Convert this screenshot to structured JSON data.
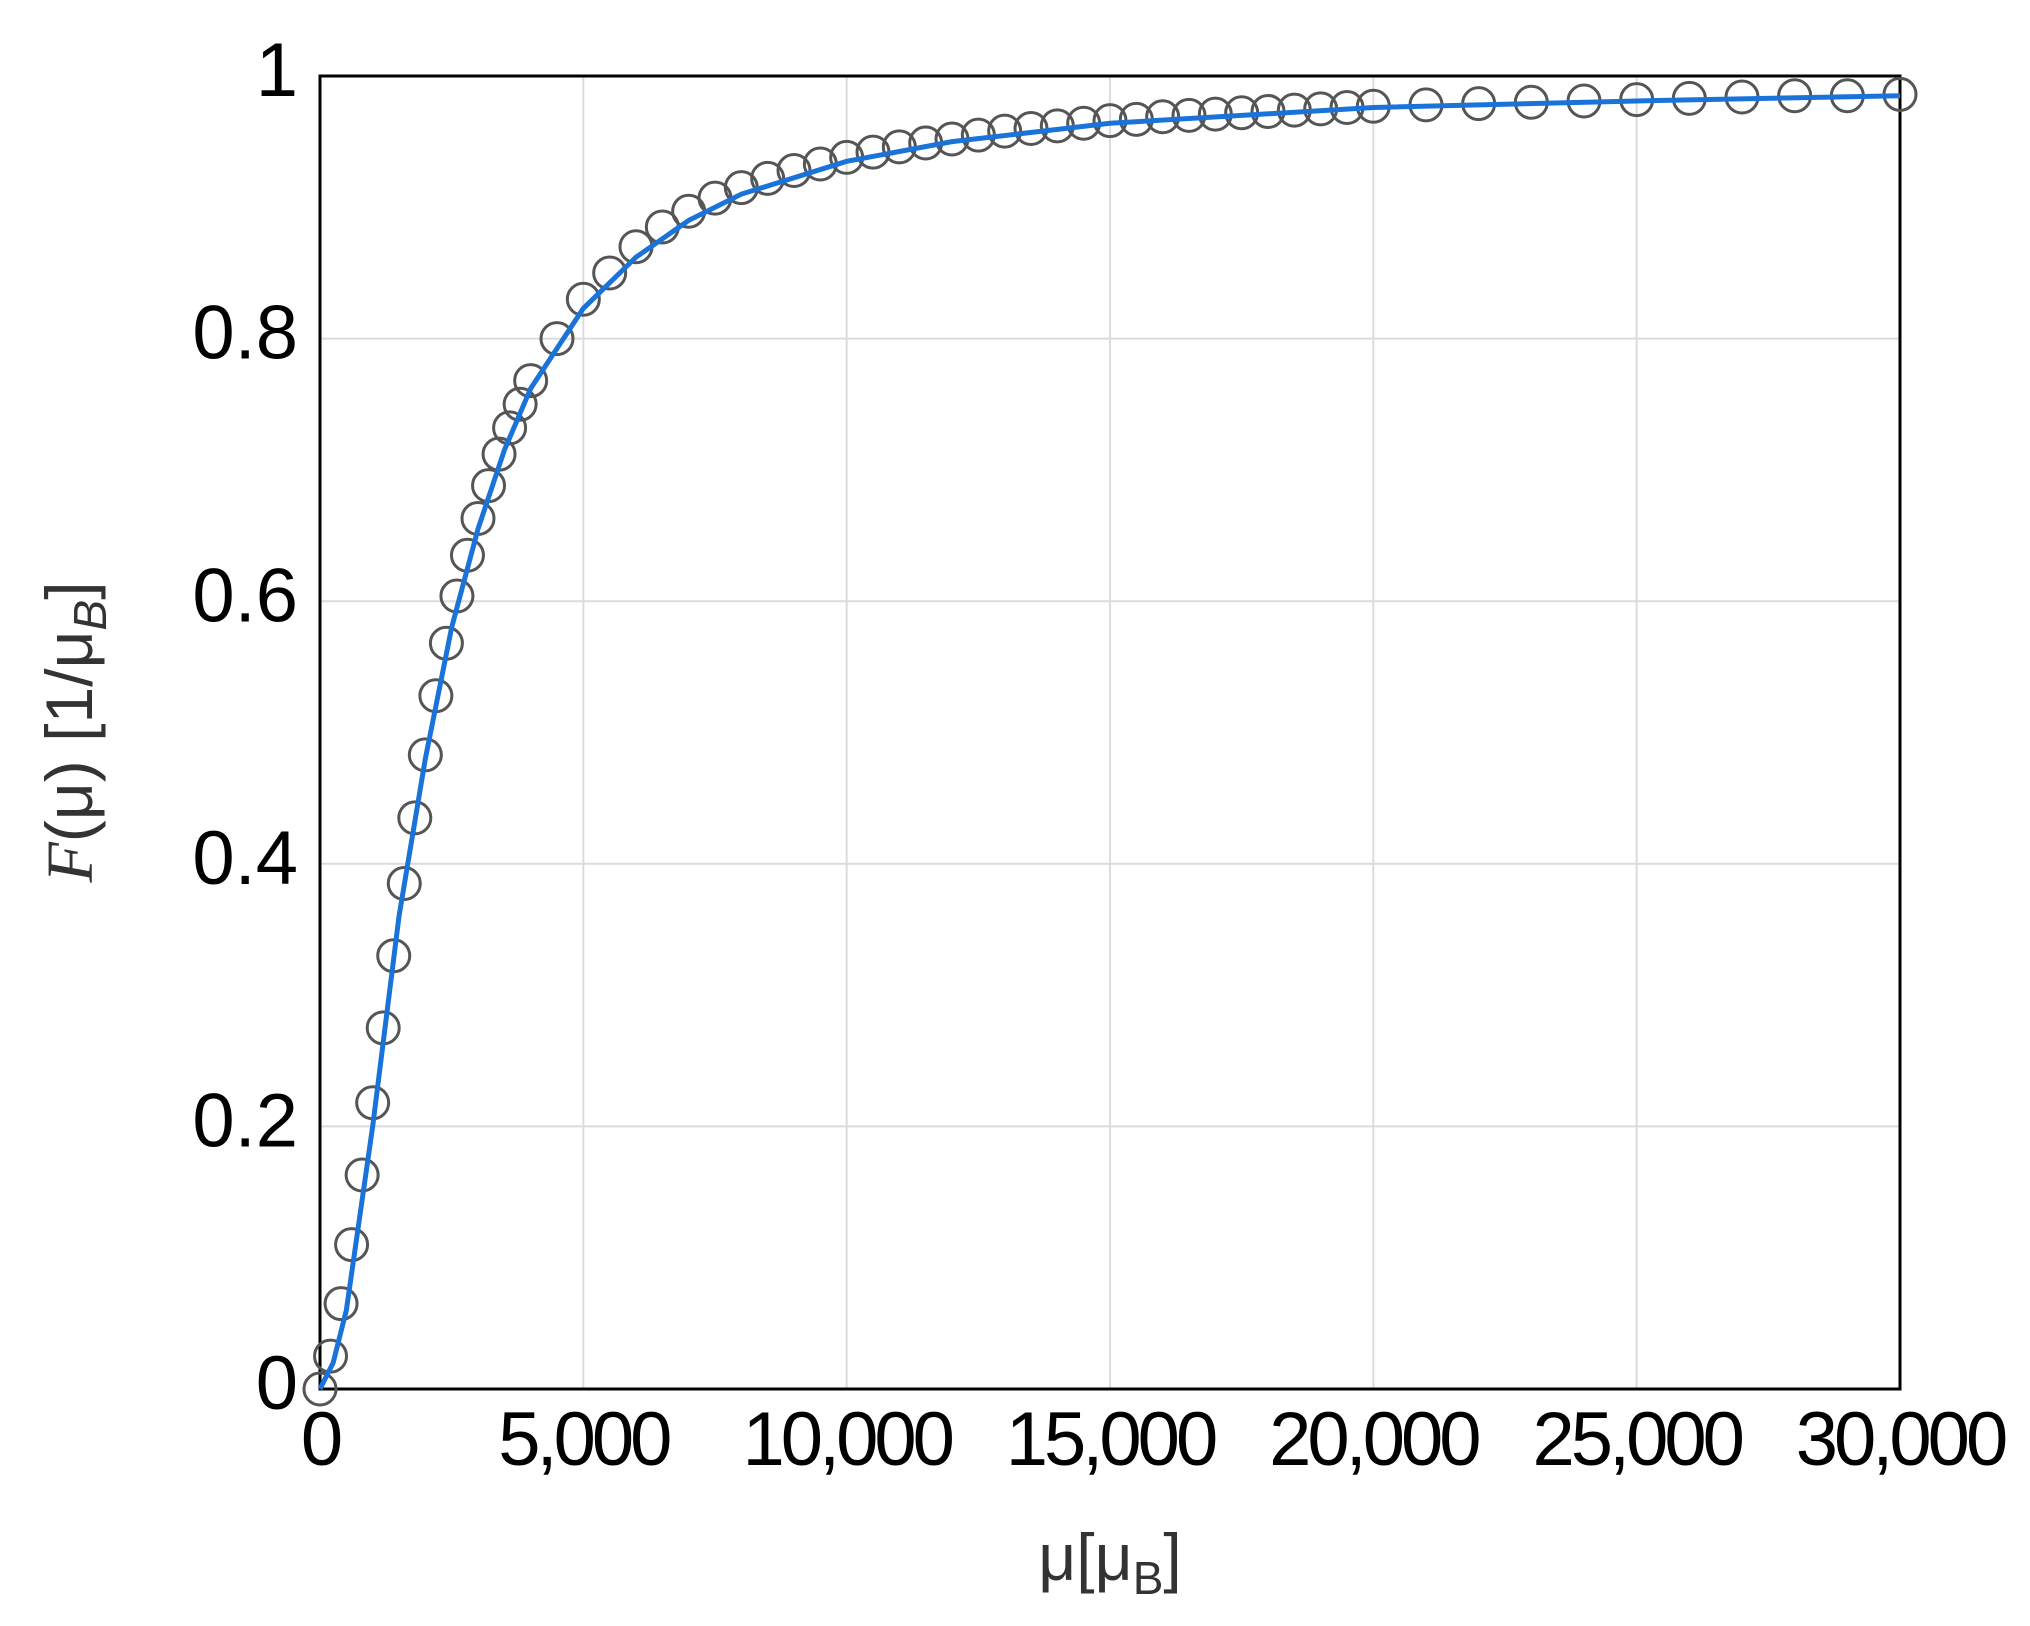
{
  "chart_data": {
    "type": "scatter_line",
    "ylabel": [
      "F",
      "(μ) [1/μ",
      "B",
      "]"
    ],
    "xlabel": [
      "μ[μ",
      "B",
      "]"
    ],
    "xlim": [
      0,
      30000
    ],
    "ylim": [
      0,
      1
    ],
    "xticks": [
      0,
      {
        "value": 5000,
        "label": "5,000"
      },
      {
        "value": 10000,
        "label": "10,000"
      },
      {
        "value": 15000,
        "label": "15,000"
      },
      {
        "value": 20000,
        "label": "20,000"
      },
      {
        "value": 25000,
        "label": "25,000"
      },
      {
        "value": 30000,
        "label": "30,000"
      }
    ],
    "yticks": [
      0,
      0.2,
      0.4,
      0.6,
      0.8,
      1
    ],
    "grid": true,
    "series": [
      {
        "kind": "scatter",
        "color": "#555555",
        "x": [
          0,
          200,
          400,
          600,
          800,
          1000,
          1200,
          1400,
          1600,
          1800,
          2000,
          2200,
          2400,
          2600,
          2800,
          3000,
          3200,
          3400,
          3600,
          3800,
          4000,
          4500,
          5000,
          5500,
          6000,
          6500,
          7000,
          7500,
          8000,
          8500,
          9000,
          9500,
          10000,
          10500,
          11000,
          11500,
          12000,
          12500,
          13000,
          13500,
          14000,
          14500,
          15000,
          15500,
          16000,
          16500,
          17000,
          17500,
          18000,
          18500,
          19000,
          19500,
          20000,
          21000,
          22000,
          23000,
          24000,
          25000,
          26000,
          27000,
          28000,
          29000,
          30000
        ],
        "values": [
          0,
          0.025,
          0.065,
          0.11,
          0.163,
          0.218,
          0.275,
          0.33,
          0.385,
          0.435,
          0.483,
          0.528,
          0.568,
          0.604,
          0.635,
          0.663,
          0.688,
          0.712,
          0.732,
          0.75,
          0.768,
          0.8,
          0.83,
          0.85,
          0.87,
          0.885,
          0.897,
          0.907,
          0.915,
          0.922,
          0.928,
          0.933,
          0.938,
          0.942,
          0.946,
          0.949,
          0.952,
          0.955,
          0.958,
          0.96,
          0.962,
          0.964,
          0.966,
          0.967,
          0.969,
          0.97,
          0.971,
          0.972,
          0.973,
          0.974,
          0.975,
          0.976,
          0.977,
          0.978,
          0.979,
          0.98,
          0.981,
          0.982,
          0.983,
          0.984,
          0.985,
          0.985,
          0.986
        ]
      },
      {
        "kind": "line",
        "color": "#1a73d9",
        "x": [
          0,
          250,
          500,
          750,
          1000,
          1500,
          2000,
          2500,
          3000,
          3500,
          4000,
          5000,
          6000,
          7000,
          8000,
          10000,
          12000,
          15000,
          20000,
          25000,
          30000
        ],
        "values": [
          0,
          0.02,
          0.06,
          0.13,
          0.2,
          0.36,
          0.48,
          0.58,
          0.655,
          0.715,
          0.762,
          0.823,
          0.862,
          0.89,
          0.91,
          0.935,
          0.95,
          0.964,
          0.976,
          0.981,
          0.985
        ]
      }
    ]
  }
}
